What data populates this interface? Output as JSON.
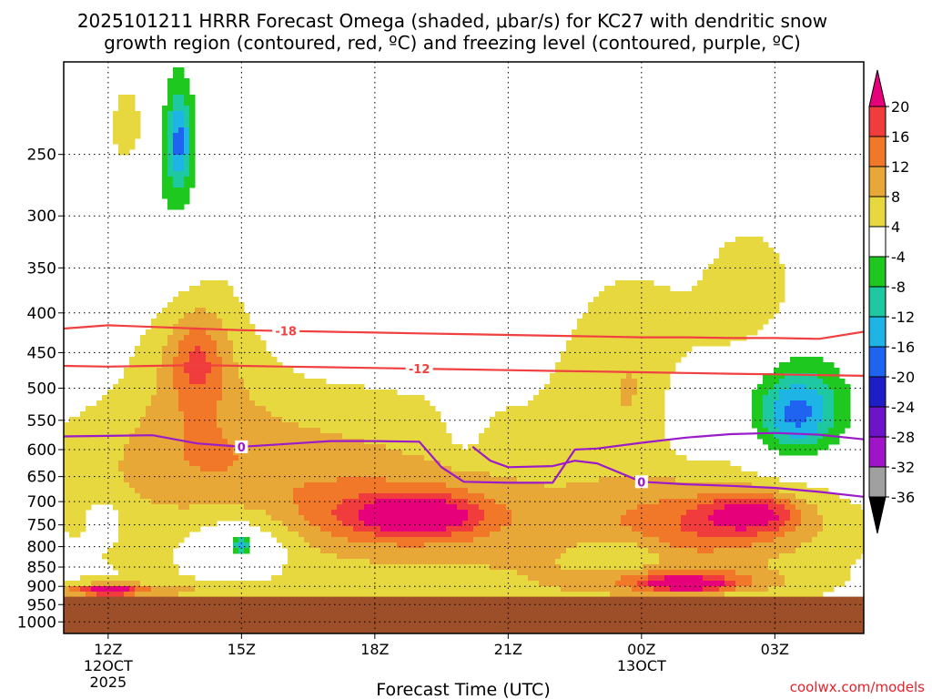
{
  "chart_data": {
    "type": "heatmap",
    "title_line1": "2025101211 HRRR Forecast Omega (shaded, μbar/s) for KC27 with dendritic snow",
    "title_line2": "growth region (contoured, red, ºC) and freezing level (contoured, purple, ºC)",
    "xlabel": "Forecast Time (UTC)",
    "x_ticks": [
      {
        "h": 0,
        "label": "12Z",
        "sub1": "12OCT",
        "sub2": "2025"
      },
      {
        "h": 3,
        "label": "15Z",
        "sub1": "",
        "sub2": ""
      },
      {
        "h": 6,
        "label": "18Z",
        "sub1": "",
        "sub2": ""
      },
      {
        "h": 9,
        "label": "21Z",
        "sub1": "",
        "sub2": ""
      },
      {
        "h": 12,
        "label": "00Z",
        "sub1": "13OCT",
        "sub2": ""
      },
      {
        "h": 15,
        "label": "03Z",
        "sub1": "",
        "sub2": ""
      }
    ],
    "xlim": [
      -1.0,
      17.0
    ],
    "y_ticks": [
      250,
      300,
      350,
      400,
      450,
      500,
      550,
      600,
      650,
      700,
      750,
      800,
      850,
      900,
      950,
      1000
    ],
    "ylim_hPa": [
      1035,
      190
    ],
    "surface_pressure_hPa": 928,
    "colorbar": {
      "labels": [
        "20",
        "16",
        "12",
        "8",
        "4",
        "-4",
        "-8",
        "-12",
        "-16",
        "-20",
        "-24",
        "-28",
        "-32",
        "-36"
      ],
      "colors": [
        "#e6007a",
        "#f03c3c",
        "#f07828",
        "#e8a838",
        "#e8d840",
        "#ffffff",
        "#1ec81e",
        "#1ec8a0",
        "#1eb4e6",
        "#1e64f0",
        "#1e1ec8",
        "#6e14c8",
        "#a014c8",
        "#a0a0a0",
        "#000000"
      ]
    },
    "contours": [
      {
        "name": "-18",
        "color": "#f04040",
        "label_at_h": 4.0,
        "points": [
          [
            -1.0,
            419
          ],
          [
            0.0,
            415
          ],
          [
            1.0,
            417
          ],
          [
            2.0,
            419
          ],
          [
            3.0,
            421
          ],
          [
            4.0,
            422
          ],
          [
            5.0,
            423
          ],
          [
            6.0,
            424
          ],
          [
            7.0,
            425
          ],
          [
            8.0,
            426
          ],
          [
            9.0,
            427
          ],
          [
            10.0,
            428
          ],
          [
            11.0,
            429
          ],
          [
            12.0,
            430
          ],
          [
            13.0,
            430
          ],
          [
            14.0,
            431
          ],
          [
            15.0,
            431
          ],
          [
            16.0,
            432
          ],
          [
            17.0,
            423
          ]
        ]
      },
      {
        "name": "-12",
        "color": "#f04040",
        "label_at_h": 7.0,
        "points": [
          [
            -1.0,
            468
          ],
          [
            0.0,
            469
          ],
          [
            1.0,
            468
          ],
          [
            2.0,
            467
          ],
          [
            3.0,
            468
          ],
          [
            4.0,
            469
          ],
          [
            5.0,
            470
          ],
          [
            6.0,
            471
          ],
          [
            7.0,
            472
          ],
          [
            8.0,
            473
          ],
          [
            9.0,
            474
          ],
          [
            10.0,
            475
          ],
          [
            11.0,
            476
          ],
          [
            12.0,
            477
          ],
          [
            13.0,
            478
          ],
          [
            14.0,
            479
          ],
          [
            15.0,
            480
          ],
          [
            16.0,
            481
          ],
          [
            17.0,
            482
          ]
        ]
      },
      {
        "name": "0",
        "color": "#9b1bc8",
        "label_at_h": 3.0,
        "points": [
          [
            -1.0,
            577
          ],
          [
            0.0,
            576
          ],
          [
            1.0,
            575
          ],
          [
            2.0,
            589
          ],
          [
            3.0,
            595
          ],
          [
            4.0,
            590
          ],
          [
            5.0,
            585
          ],
          [
            6.0,
            585
          ],
          [
            7.0,
            586
          ],
          [
            7.5,
            632
          ],
          [
            8.0,
            660
          ],
          [
            9.0,
            662
          ],
          [
            10.0,
            662
          ],
          [
            10.5,
            600
          ],
          [
            11.0,
            598
          ],
          [
            12.0,
            588
          ],
          [
            13.0,
            579
          ],
          [
            14.0,
            573
          ],
          [
            15.0,
            571
          ],
          [
            16.0,
            574
          ],
          [
            17.0,
            582
          ]
        ]
      },
      {
        "name": "0",
        "color": "#9b1bc8",
        "label_at_h": 12.0,
        "points": [
          [
            8.2,
            595
          ],
          [
            8.6,
            620
          ],
          [
            9.0,
            632
          ],
          [
            10.0,
            630
          ],
          [
            10.5,
            620
          ],
          [
            11.0,
            625
          ],
          [
            12.0,
            660
          ],
          [
            13.0,
            665
          ],
          [
            14.0,
            668
          ],
          [
            15.0,
            672
          ],
          [
            16.0,
            680
          ],
          [
            17.0,
            690
          ]
        ]
      }
    ],
    "blobs": [
      {
        "v": 6,
        "h": 4.5,
        "p": 790,
        "rh": 7.0,
        "rp": 300
      },
      {
        "v": 6,
        "h": 12.5,
        "p": 820,
        "rh": 5.5,
        "rp": 280
      },
      {
        "v": 6,
        "h": 2.8,
        "p": 620,
        "rh": 4.5,
        "rp": 120
      },
      {
        "v": 6,
        "h": 2.0,
        "p": 470,
        "rh": 1.4,
        "rp": 160
      },
      {
        "v": 6,
        "h": 11.8,
        "p": 470,
        "rh": 1.6,
        "rp": 140
      },
      {
        "v": 6,
        "h": 14.5,
        "p": 380,
        "rh": 1.2,
        "rp": 90
      },
      {
        "v": 6,
        "h": 0.5,
        "p": 230,
        "rh": 0.6,
        "rp": 40
      },
      {
        "v": 9,
        "h": 6.5,
        "p": 730,
        "rh": 2.5,
        "rp": 70
      },
      {
        "v": 13,
        "h": 7.0,
        "p": 730,
        "rh": 1.2,
        "rp": 40
      },
      {
        "v": 18,
        "h": 6.9,
        "p": 728,
        "rh": 0.15,
        "rp": 10
      },
      {
        "v": 9,
        "h": 13.5,
        "p": 750,
        "rh": 2.5,
        "rp": 80
      },
      {
        "v": 13,
        "h": 14.5,
        "p": 725,
        "rh": 1.0,
        "rp": 40
      },
      {
        "v": 10,
        "h": 13.0,
        "p": 885,
        "rh": 2.0,
        "rp": 30
      },
      {
        "v": 18,
        "h": 13.0,
        "p": 895,
        "rh": 0.8,
        "rp": 15
      },
      {
        "v": 10,
        "h": 0.0,
        "p": 910,
        "rh": 2.0,
        "rp": 20
      },
      {
        "v": 21,
        "h": 0.0,
        "p": 912,
        "rh": 0.5,
        "rp": 10
      },
      {
        "v": 9,
        "h": 2.0,
        "p": 460,
        "rh": 0.6,
        "rp": 60
      },
      {
        "v": -6,
        "h": 1.5,
        "p": 270,
        "rh": 0.8,
        "rp": 100
      },
      {
        "v": -14,
        "h": 1.6,
        "p": 240,
        "rh": 0.25,
        "rp": 30
      },
      {
        "v": -8,
        "h": 3.0,
        "p": 795,
        "rh": 1.2,
        "rp": 80
      },
      {
        "v": -14,
        "h": 3.0,
        "p": 795,
        "rh": 0.2,
        "rp": 20
      },
      {
        "v": -6,
        "h": 8.0,
        "p": 520,
        "rh": 0.4,
        "rp": 80
      },
      {
        "v": -6,
        "h": 11.5,
        "p": 820,
        "rh": 1.0,
        "rp": 50
      },
      {
        "v": -6,
        "h": 13.0,
        "p": 540,
        "rh": 0.6,
        "rp": 70
      },
      {
        "v": -8,
        "h": 15.5,
        "p": 530,
        "rh": 1.5,
        "rp": 100
      },
      {
        "v": -12,
        "h": 15.5,
        "p": 540,
        "rh": 0.8,
        "rp": 60
      },
      {
        "v": -6,
        "h": -0.1,
        "p": 740,
        "rh": 0.3,
        "rp": 40
      }
    ],
    "watermark": "coolwx.com/models"
  }
}
